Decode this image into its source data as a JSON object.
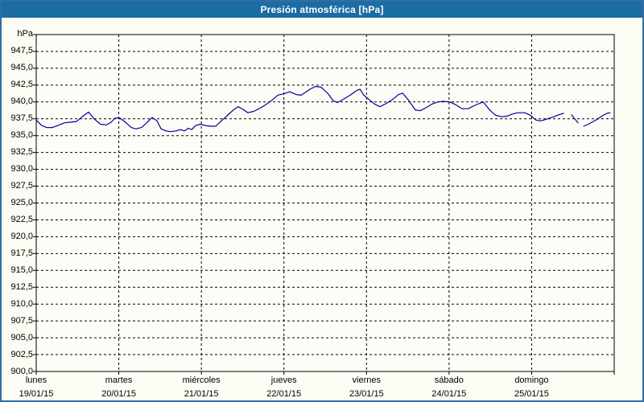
{
  "window": {
    "title": "Presión atmosférica [hPa]"
  },
  "colors": {
    "titlebar": "#1C6CA4",
    "titlebar_text": "#FFFFFF",
    "frame_border": "#2F6EA5",
    "background": "#FCFCF4",
    "plot_background": "#FDFDF7",
    "grid": "#000000",
    "axis": "#000000",
    "series_line": "#0000A0",
    "label_text": "#000000"
  },
  "chart_data": {
    "type": "line",
    "title": "Presión atmosférica [hPa]",
    "y_axis": {
      "unit_label": "hPa",
      "min": 900,
      "max": 950,
      "tick_step": 2.5,
      "decimal_separator": ",",
      "tick_labels": [
        "947,5",
        "945,0",
        "942,5",
        "940,0",
        "937,5",
        "935,0",
        "932,5",
        "930,0",
        "927,5",
        "925,0",
        "922,5",
        "920,0",
        "917,5",
        "915,0",
        "912,5",
        "910,0",
        "907,5",
        "905,0",
        "902,5",
        "900,0"
      ]
    },
    "x_axis": {
      "total_hours": 168,
      "days": [
        {
          "name": "lunes",
          "date": "19/01/15"
        },
        {
          "name": "martes",
          "date": "20/01/15"
        },
        {
          "name": "miércoles",
          "date": "21/01/15"
        },
        {
          "name": "jueves",
          "date": "22/01/15"
        },
        {
          "name": "viernes",
          "date": "23/01/15"
        },
        {
          "name": "sábado",
          "date": "24/01/15"
        },
        {
          "name": "domingo",
          "date": "25/01/15"
        }
      ]
    },
    "grid": "dashed",
    "legend": "none",
    "series": [
      {
        "name": "Presión atmosférica",
        "color": "#0000A0",
        "x_unit": "hours_since_monday_00",
        "y_unit": "hPa",
        "segments": [
          [
            [
              0.0,
              937.3
            ],
            [
              1.6,
              936.5
            ],
            [
              3.0,
              936.2
            ],
            [
              4.7,
              936.2
            ],
            [
              6.3,
              936.5
            ],
            [
              8.2,
              936.9
            ],
            [
              10.1,
              937.0
            ],
            [
              11.7,
              937.1
            ],
            [
              13.6,
              937.9
            ],
            [
              15.2,
              938.5
            ],
            [
              16.8,
              937.5
            ],
            [
              18.7,
              936.7
            ],
            [
              20.4,
              936.6
            ],
            [
              21.8,
              937.0
            ],
            [
              22.9,
              937.6
            ],
            [
              24.3,
              937.6
            ],
            [
              25.7,
              937.1
            ],
            [
              27.6,
              936.2
            ],
            [
              29.0,
              936.0
            ],
            [
              30.6,
              936.2
            ],
            [
              32.1,
              936.9
            ],
            [
              33.7,
              937.7
            ],
            [
              35.1,
              937.2
            ],
            [
              36.3,
              936.0
            ],
            [
              37.7,
              935.7
            ],
            [
              39.1,
              935.6
            ],
            [
              40.7,
              935.7
            ],
            [
              41.9,
              935.9
            ],
            [
              43.1,
              935.7
            ],
            [
              44.2,
              936.1
            ],
            [
              45.2,
              935.9
            ],
            [
              46.3,
              936.5
            ],
            [
              47.7,
              936.7
            ],
            [
              49.1,
              936.5
            ],
            [
              50.8,
              936.4
            ],
            [
              52.2,
              936.4
            ],
            [
              53.4,
              937.0
            ],
            [
              54.7,
              937.6
            ],
            [
              56.2,
              938.3
            ],
            [
              57.3,
              938.8
            ],
            [
              58.7,
              939.3
            ],
            [
              60.1,
              938.9
            ],
            [
              61.5,
              938.4
            ],
            [
              63.2,
              938.6
            ],
            [
              64.8,
              939.0
            ],
            [
              66.7,
              939.6
            ],
            [
              68.6,
              940.3
            ],
            [
              70.2,
              941.0
            ],
            [
              71.8,
              941.2
            ],
            [
              73.7,
              941.5
            ],
            [
              75.6,
              941.1
            ],
            [
              77.0,
              941.0
            ],
            [
              79.6,
              941.9
            ],
            [
              81.2,
              942.3
            ],
            [
              82.8,
              942.2
            ],
            [
              84.7,
              941.3
            ],
            [
              86.3,
              940.2
            ],
            [
              87.5,
              939.9
            ],
            [
              89.6,
              940.5
            ],
            [
              91.5,
              941.1
            ],
            [
              93.1,
              941.7
            ],
            [
              94.1,
              941.9
            ],
            [
              95.2,
              941.0
            ],
            [
              96.9,
              940.3
            ],
            [
              98.3,
              939.7
            ],
            [
              99.9,
              939.3
            ],
            [
              101.8,
              939.8
            ],
            [
              103.7,
              940.4
            ],
            [
              105.3,
              941.1
            ],
            [
              106.5,
              941.3
            ],
            [
              108.3,
              940.2
            ],
            [
              110.2,
              938.8
            ],
            [
              111.6,
              938.7
            ],
            [
              113.5,
              939.2
            ],
            [
              115.1,
              939.7
            ],
            [
              116.8,
              940.0
            ],
            [
              118.4,
              940.1
            ],
            [
              120.3,
              940.0
            ],
            [
              121.9,
              939.6
            ],
            [
              123.8,
              939.0
            ],
            [
              125.6,
              939.0
            ],
            [
              127.5,
              939.5
            ],
            [
              129.9,
              940.0
            ],
            [
              132.0,
              938.7
            ],
            [
              133.6,
              938.0
            ],
            [
              135.5,
              937.8
            ],
            [
              136.9,
              937.9
            ],
            [
              138.3,
              938.2
            ],
            [
              139.9,
              938.4
            ],
            [
              142.0,
              938.4
            ],
            [
              143.7,
              938.0
            ],
            [
              145.3,
              937.3
            ],
            [
              146.7,
              937.2
            ],
            [
              148.6,
              937.5
            ],
            [
              150.5,
              937.8
            ],
            [
              151.9,
              938.1
            ],
            [
              153.3,
              938.3
            ]
          ],
          [
            [
              155.6,
              938.1
            ],
            [
              156.5,
              937.5
            ],
            [
              157.5,
              936.9
            ]
          ],
          [
            [
              159.1,
              936.4
            ],
            [
              160.5,
              936.7
            ],
            [
              161.9,
              937.1
            ],
            [
              163.3,
              937.5
            ],
            [
              164.7,
              938.0
            ],
            [
              165.9,
              938.3
            ],
            [
              166.8,
              938.4
            ]
          ]
        ]
      }
    ]
  }
}
